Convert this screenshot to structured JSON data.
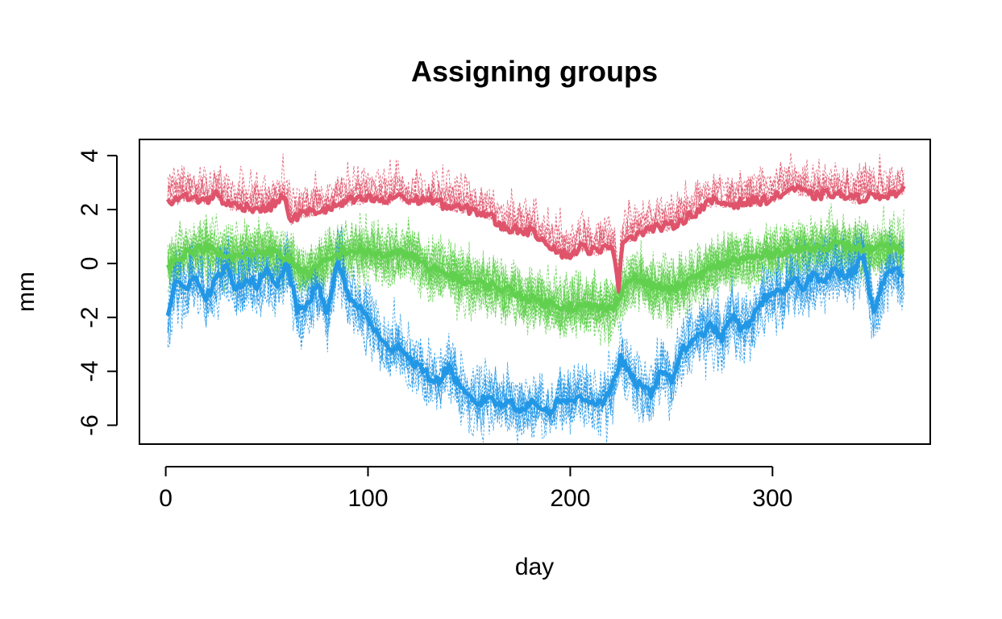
{
  "chart_data": {
    "type": "line",
    "title": "Assigning groups",
    "xlabel": "day",
    "ylabel": "mm",
    "xlim": [
      -13,
      378
    ],
    "ylim": [
      -6.7,
      4.6
    ],
    "xticks": [
      0,
      100,
      200,
      300
    ],
    "yticks": [
      -6,
      -4,
      -2,
      0,
      2,
      4
    ],
    "grid": false,
    "legend": "none",
    "series": [
      {
        "color": "#DF536B",
        "role": "group-mean",
        "x": [
          1,
          5,
          10,
          20,
          25,
          30,
          40,
          50,
          58,
          62,
          66,
          70,
          80,
          90,
          100,
          110,
          115,
          120,
          130,
          140,
          150,
          160,
          165,
          170,
          180,
          185,
          190,
          195,
          200,
          205,
          210,
          215,
          220,
          222,
          224,
          226,
          230,
          240,
          250,
          260,
          270,
          280,
          290,
          300,
          310,
          320,
          330,
          340,
          350,
          360,
          365
        ],
        "y": [
          2.4,
          2.3,
          2.5,
          2.3,
          2.6,
          2.2,
          2.1,
          2.0,
          2.5,
          1.6,
          1.8,
          1.9,
          2.0,
          2.3,
          2.4,
          2.3,
          2.6,
          2.3,
          2.4,
          2.1,
          2.0,
          1.8,
          1.4,
          1.3,
          1.2,
          1.0,
          0.7,
          0.4,
          0.3,
          0.6,
          0.5,
          0.4,
          0.8,
          0.2,
          -0.9,
          0.9,
          1.0,
          1.3,
          1.4,
          1.8,
          2.3,
          2.2,
          2.3,
          2.4,
          2.8,
          2.5,
          2.6,
          2.4,
          2.5,
          2.6,
          2.7
        ]
      },
      {
        "color": "#61D04F",
        "role": "group-mean",
        "x": [
          1,
          10,
          20,
          30,
          40,
          50,
          60,
          70,
          80,
          90,
          100,
          110,
          120,
          130,
          140,
          150,
          160,
          170,
          180,
          190,
          200,
          210,
          220,
          230,
          240,
          250,
          260,
          270,
          280,
          290,
          300,
          310,
          320,
          330,
          340,
          350,
          360,
          365
        ],
        "y": [
          -0.1,
          0.4,
          0.6,
          0.2,
          0.3,
          0.5,
          0.2,
          -0.4,
          0.1,
          0.5,
          0.4,
          0.3,
          0.4,
          -0.2,
          -0.4,
          -0.7,
          -0.8,
          -1.0,
          -1.3,
          -1.5,
          -1.6,
          -1.6,
          -1.7,
          -0.5,
          -0.8,
          -1.0,
          -0.6,
          -0.2,
          0.1,
          0.2,
          0.4,
          0.5,
          0.6,
          0.7,
          0.6,
          0.5,
          0.6,
          0.5
        ]
      },
      {
        "color": "#2297E6",
        "role": "group-mean",
        "x": [
          1,
          5,
          10,
          15,
          20,
          25,
          30,
          35,
          40,
          45,
          50,
          55,
          60,
          65,
          70,
          75,
          80,
          85,
          90,
          95,
          100,
          105,
          110,
          115,
          120,
          125,
          130,
          135,
          140,
          145,
          150,
          155,
          160,
          165,
          170,
          175,
          180,
          185,
          190,
          195,
          200,
          205,
          210,
          215,
          220,
          225,
          230,
          235,
          240,
          245,
          250,
          255,
          260,
          265,
          270,
          275,
          280,
          285,
          290,
          295,
          300,
          305,
          310,
          315,
          320,
          325,
          330,
          335,
          340,
          345,
          350,
          355,
          360,
          365
        ],
        "y": [
          -2.1,
          -0.5,
          -1.0,
          -0.4,
          -1.3,
          -0.6,
          -0.2,
          -1.0,
          -0.5,
          -0.8,
          -0.3,
          -0.9,
          0.1,
          -1.8,
          -1.5,
          -0.8,
          -1.9,
          0.2,
          -1.2,
          -1.6,
          -2.0,
          -2.7,
          -3.2,
          -3.0,
          -3.5,
          -3.8,
          -4.2,
          -4.4,
          -3.8,
          -4.6,
          -5.0,
          -5.2,
          -4.9,
          -5.3,
          -5.1,
          -5.4,
          -5.2,
          -5.3,
          -5.5,
          -5.0,
          -5.2,
          -4.9,
          -5.1,
          -5.2,
          -4.8,
          -3.5,
          -4.2,
          -4.6,
          -4.8,
          -3.9,
          -4.4,
          -3.2,
          -3.0,
          -2.6,
          -2.3,
          -2.8,
          -1.9,
          -2.5,
          -2.0,
          -1.4,
          -1.0,
          -1.2,
          -0.6,
          -0.9,
          -0.4,
          -0.6,
          -0.2,
          -0.5,
          -0.3,
          0.3,
          -1.9,
          -0.6,
          -0.2,
          -0.3
        ]
      }
    ]
  }
}
